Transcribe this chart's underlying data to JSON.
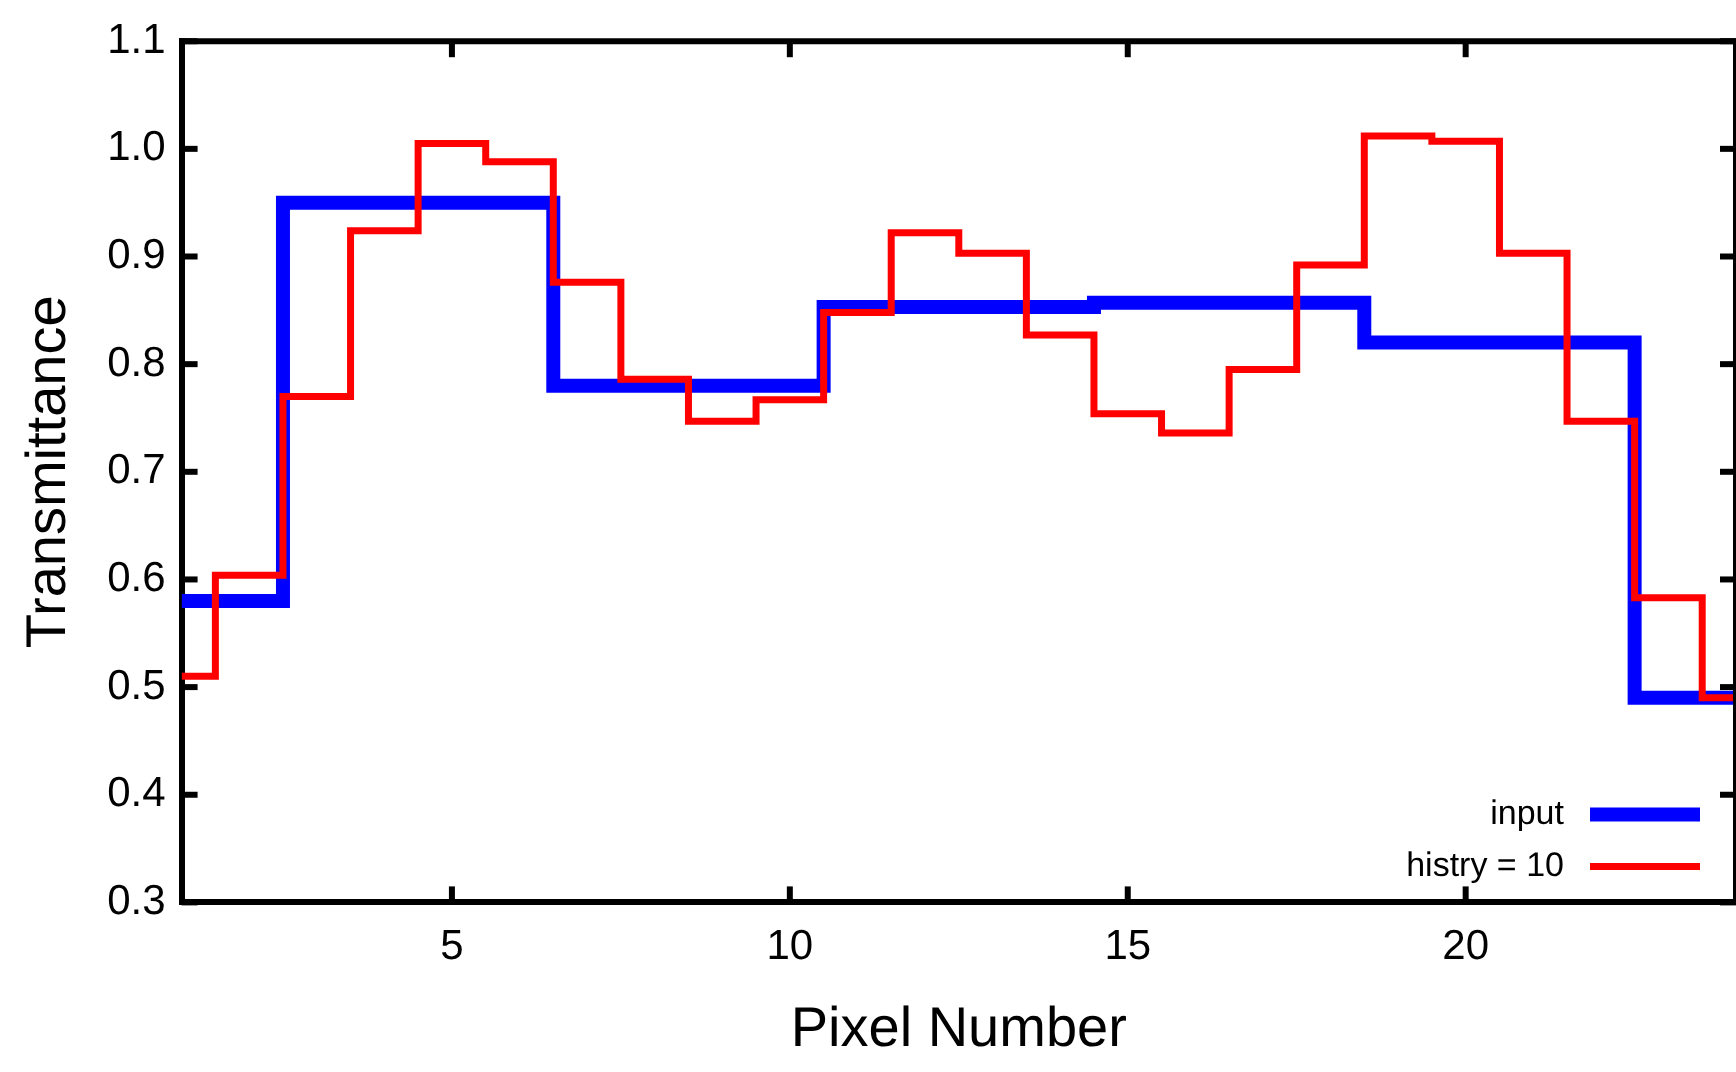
{
  "chart_data": {
    "type": "step",
    "xlabel": "Pixel Number",
    "ylabel": "Transmittance",
    "x": [
      1,
      2,
      3,
      4,
      5,
      6,
      7,
      8,
      9,
      10,
      11,
      12,
      13,
      14,
      15,
      16,
      17,
      18,
      19,
      20,
      21,
      22,
      23,
      24
    ],
    "xlim": [
      1,
      24
    ],
    "xticks": [
      5,
      10,
      15,
      20
    ],
    "ylim": [
      0.3,
      1.1
    ],
    "yticks": [
      {
        "value": 0.3,
        "label": "0.3"
      },
      {
        "value": 0.4,
        "label": "0.4"
      },
      {
        "value": 0.5,
        "label": "0.5"
      },
      {
        "value": 0.6,
        "label": "0.6"
      },
      {
        "value": 0.7,
        "label": "0.7"
      },
      {
        "value": 0.8,
        "label": "0.8"
      },
      {
        "value": 0.9,
        "label": "0.9"
      },
      {
        "value": 1.0,
        "label": "1.0"
      },
      {
        "value": 1.1,
        "label": "1.1"
      }
    ],
    "grid": false,
    "legend": "bottom right",
    "marker": "none",
    "line_style": "solid",
    "series": [
      {
        "name": "input",
        "color": "#0000ff",
        "values": [
          0.58,
          0.58,
          0.95,
          0.95,
          0.95,
          0.95,
          0.78,
          0.78,
          0.78,
          0.78,
          0.853,
          0.853,
          0.853,
          0.853,
          0.857,
          0.857,
          0.857,
          0.857,
          0.82,
          0.82,
          0.82,
          0.82,
          0.49,
          0.49
        ]
      },
      {
        "name": "histry = 10",
        "color": "#ff0000",
        "values": [
          0.51,
          0.604,
          0.77,
          0.924,
          1.005,
          0.988,
          0.876,
          0.786,
          0.747,
          0.767,
          0.848,
          0.922,
          0.903,
          0.827,
          0.754,
          0.736,
          0.795,
          0.892,
          1.012,
          1.007,
          0.903,
          0.747,
          0.583,
          0.49
        ]
      }
    ]
  }
}
